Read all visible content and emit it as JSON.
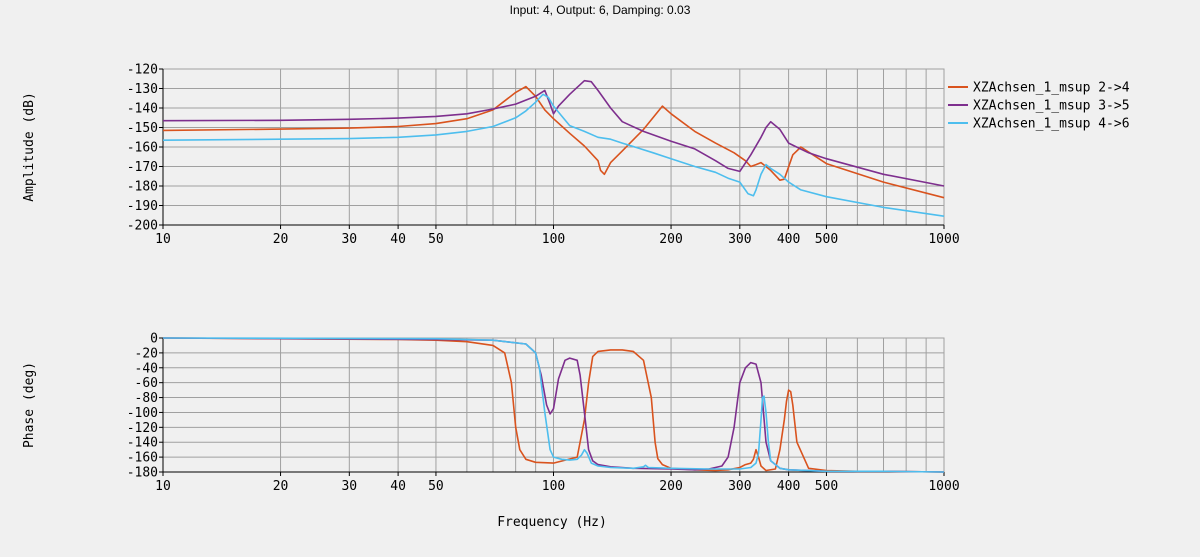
{
  "figure": {
    "title": "Input: 4, Output: 6, Damping: 0.03"
  },
  "colors": {
    "background": "#f0f0f0",
    "plot_background": "#f0f0f0",
    "grid": "#a0a0a0",
    "series_2_4": "#d9531e",
    "series_3_5": "#7e2f8e",
    "series_4_6": "#4dbeee"
  },
  "chart_data": [
    {
      "type": "line",
      "title": "",
      "xlabel": "",
      "ylabel": "Amplitude (dB)",
      "xscale": "log",
      "xlim": [
        10,
        1000
      ],
      "ylim": [
        -200,
        -120
      ],
      "grid": true,
      "legend": "top-right outside",
      "xticks": [
        10,
        20,
        30,
        40,
        50,
        100,
        200,
        300,
        400,
        500,
        1000
      ],
      "xtick_labels": [
        "10",
        "20",
        "30",
        "40",
        "50",
        "100",
        "200",
        "300",
        "400",
        "500",
        "1000"
      ],
      "yticks": [
        -120,
        -130,
        -140,
        -150,
        -160,
        -170,
        -180,
        -190,
        -200
      ],
      "ytick_labels": [
        "-120",
        "-130",
        "-140",
        "-150",
        "-160",
        "-170",
        "-180",
        "-190",
        "-200"
      ],
      "series": [
        {
          "name": "XZAchsen_1_msup 2->4",
          "color": "#d9531e",
          "x": [
            10,
            20,
            30,
            40,
            50,
            60,
            70,
            80,
            85,
            90,
            95,
            100,
            110,
            120,
            130,
            132,
            135,
            140,
            150,
            170,
            190,
            200,
            230,
            260,
            290,
            310,
            320,
            330,
            340,
            360,
            380,
            390,
            410,
            430,
            500,
            700,
            1000
          ],
          "y": [
            -151.5,
            -150.8,
            -150.3,
            -149.5,
            -148,
            -145.5,
            -141,
            -132,
            -129,
            -134,
            -141,
            -145.5,
            -153,
            -159.5,
            -167,
            -172,
            -174,
            -168,
            -162,
            -151,
            -139,
            -143,
            -152,
            -158,
            -163,
            -167,
            -170,
            -169,
            -168,
            -172,
            -177,
            -176.5,
            -164,
            -160,
            -168.5,
            -178,
            -186
          ]
        },
        {
          "name": "XZAchsen_1_msup 3->5",
          "color": "#7e2f8e",
          "x": [
            10,
            20,
            30,
            40,
            50,
            60,
            70,
            80,
            90,
            95,
            98,
            100,
            103,
            110,
            120,
            125,
            130,
            140,
            150,
            170,
            200,
            230,
            260,
            280,
            300,
            320,
            340,
            350,
            360,
            380,
            400,
            450,
            500,
            700,
            1000
          ],
          "y": [
            -146.5,
            -146.3,
            -145.8,
            -145.2,
            -144.3,
            -143,
            -140.5,
            -138,
            -134,
            -131,
            -138,
            -143,
            -139,
            -133,
            -126,
            -126.5,
            -131,
            -140,
            -147,
            -152,
            -157,
            -161,
            -167,
            -171,
            -172.5,
            -164,
            -155,
            -150,
            -147,
            -151,
            -158,
            -163,
            -166,
            -174,
            -180
          ]
        },
        {
          "name": "XZAchsen_1_msup 4->6",
          "color": "#4dbeee",
          "x": [
            10,
            20,
            30,
            40,
            50,
            60,
            70,
            80,
            85,
            90,
            94,
            97,
            100,
            110,
            120,
            130,
            140,
            150,
            180,
            200,
            230,
            260,
            280,
            300,
            315,
            325,
            330,
            340,
            350,
            360,
            380,
            400,
            430,
            500,
            700,
            1000
          ],
          "y": [
            -156.5,
            -156,
            -155.7,
            -155,
            -153.8,
            -152,
            -149.5,
            -145,
            -141.5,
            -137,
            -133,
            -134.5,
            -139,
            -149,
            -152,
            -155,
            -156,
            -158,
            -163,
            -166,
            -170,
            -173,
            -176,
            -178,
            -184,
            -185,
            -182,
            -174,
            -169,
            -171,
            -174,
            -178,
            -182,
            -185.5,
            -191,
            -195.5
          ]
        }
      ]
    },
    {
      "type": "line",
      "title": "",
      "xlabel": "Frequency (Hz)",
      "ylabel": "Phase (deg)",
      "xscale": "log",
      "xlim": [
        10,
        1000
      ],
      "ylim": [
        -180,
        0
      ],
      "grid": true,
      "xticks": [
        10,
        20,
        30,
        40,
        50,
        100,
        200,
        300,
        400,
        500,
        1000
      ],
      "xtick_labels": [
        "10",
        "20",
        "30",
        "40",
        "50",
        "100",
        "200",
        "300",
        "400",
        "500",
        "1000"
      ],
      "yticks": [
        0,
        -20,
        -40,
        -60,
        -80,
        -100,
        -120,
        -140,
        -160,
        -180
      ],
      "ytick_labels": [
        "0",
        "-20",
        "-40",
        "-60",
        "-80",
        "-100",
        "-120",
        "-140",
        "-160",
        "-180"
      ],
      "series": [
        {
          "name": "XZAchsen_1_msup 2->4",
          "color": "#d9531e",
          "x": [
            10,
            40,
            50,
            60,
            70,
            75,
            78,
            80,
            82,
            85,
            90,
            100,
            115,
            120,
            123,
            126,
            130,
            140,
            150,
            160,
            170,
            178,
            182,
            185,
            190,
            200,
            230,
            260,
            280,
            300,
            310,
            320,
            325,
            330,
            335,
            340,
            350,
            370,
            380,
            390,
            395,
            400,
            405,
            410,
            420,
            450,
            500,
            600,
            700,
            1000
          ],
          "y": [
            0,
            -2,
            -3,
            -5,
            -10,
            -20,
            -60,
            -120,
            -150,
            -163,
            -167,
            -168,
            -160,
            -110,
            -60,
            -25,
            -18,
            -16,
            -16,
            -18,
            -30,
            -80,
            -140,
            -162,
            -170,
            -175,
            -177,
            -178,
            -177,
            -174,
            -170,
            -168,
            -163,
            -150,
            -160,
            -172,
            -178,
            -176,
            -150,
            -110,
            -85,
            -70,
            -72,
            -90,
            -140,
            -175,
            -178,
            -179,
            -179,
            -180
          ]
        },
        {
          "name": "XZAchsen_1_msup 3->5",
          "color": "#7e2f8e",
          "x": [
            10,
            50,
            70,
            85,
            90,
            93,
            96,
            98,
            100,
            103,
            107,
            110,
            115,
            117,
            120,
            123,
            126,
            130,
            140,
            160,
            200,
            230,
            250,
            270,
            280,
            290,
            300,
            310,
            320,
            330,
            340,
            345,
            350,
            360,
            380,
            400,
            500,
            700,
            1000
          ],
          "y": [
            0,
            -2,
            -3,
            -8,
            -20,
            -50,
            -90,
            -102,
            -95,
            -55,
            -30,
            -27,
            -30,
            -50,
            -100,
            -150,
            -165,
            -170,
            -173,
            -175,
            -176,
            -177,
            -176,
            -172,
            -160,
            -120,
            -60,
            -40,
            -33,
            -35,
            -60,
            -100,
            -140,
            -165,
            -175,
            -177,
            -179,
            -179,
            -180
          ]
        },
        {
          "name": "XZAchsen_1_msup 4->6",
          "color": "#4dbeee",
          "x": [
            10,
            50,
            70,
            85,
            90,
            92,
            95,
            98,
            100,
            105,
            110,
            115,
            118,
            120,
            122,
            125,
            130,
            140,
            160,
            170,
            172,
            175,
            200,
            250,
            280,
            300,
            320,
            330,
            335,
            340,
            343,
            346,
            350,
            355,
            360,
            380,
            400,
            500,
            700,
            1000
          ],
          "y": [
            0,
            -1,
            -3,
            -8,
            -20,
            -40,
            -100,
            -150,
            -160,
            -163,
            -164,
            -163,
            -157,
            -150,
            -155,
            -168,
            -172,
            -174,
            -175,
            -173,
            -171,
            -174,
            -175,
            -176,
            -176,
            -176,
            -174,
            -168,
            -155,
            -110,
            -80,
            -78,
            -100,
            -140,
            -165,
            -175,
            -177,
            -179,
            -179,
            -180
          ]
        }
      ]
    }
  ]
}
